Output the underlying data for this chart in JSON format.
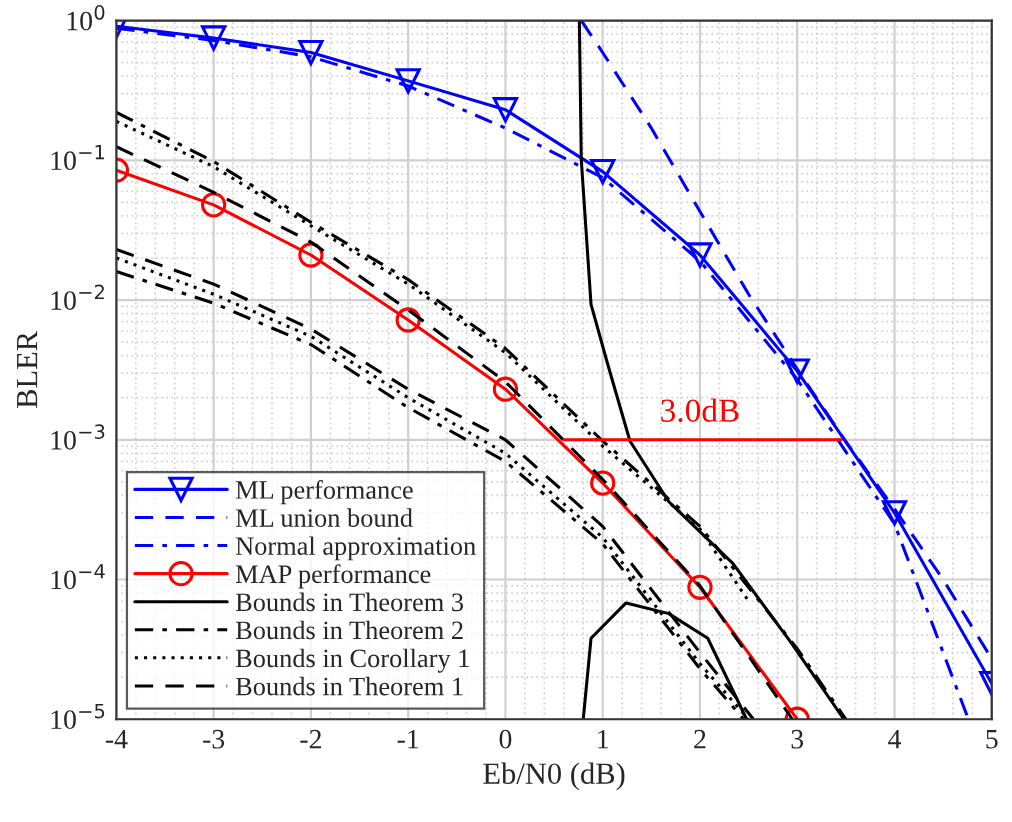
{
  "chart_data": {
    "type": "line",
    "xlabel": "Eb/N0 (dB)",
    "ylabel": "BLER",
    "xlim": [
      -4,
      5
    ],
    "xticks": [
      -4,
      -3,
      -2,
      -1,
      0,
      1,
      2,
      3,
      4,
      5
    ],
    "ylim": [
      1e-05,
      1
    ],
    "yticks": [
      {
        "value": 1e-05,
        "label": "10$^{−5}$"
      },
      {
        "value": 0.0001,
        "label": "10$^{−4}$"
      },
      {
        "value": 0.001,
        "label": "10$^{−3}$"
      },
      {
        "value": 0.01,
        "label": "10$^{−2}$"
      },
      {
        "value": 0.1,
        "label": "10$^{−1}$"
      },
      {
        "value": 1,
        "label": "10$^{0}$"
      }
    ],
    "log": "y",
    "grid": true,
    "legend": "bottom left",
    "series": [
      {
        "name": "ML performance",
        "color": "#0000ff",
        "line_style": "solid",
        "marker": "triangle",
        "x": [
          -4,
          -3,
          -2,
          -1,
          0,
          1,
          2,
          3,
          4,
          5
        ],
        "values": [
          0.91,
          0.75,
          0.59,
          0.37,
          0.23,
          0.083,
          0.021,
          0.0031,
          0.0003,
          1.8e-05
        ]
      },
      {
        "name": "ML union bound",
        "color": "#0000ff",
        "line_style": "dashed",
        "x": [
          0.78,
          1,
          1.5,
          2,
          2.5,
          3,
          3.5,
          4,
          4.5,
          5
        ],
        "values": [
          1,
          0.59,
          0.17,
          0.043,
          0.011,
          0.0032,
          0.00097,
          0.00032,
          0.0001,
          2.7e-05
        ]
      },
      {
        "name": "Normal approximation",
        "color": "#0000ff",
        "line_style": "dashdot",
        "x": [
          -4,
          -3,
          -2,
          -1,
          0,
          1,
          2,
          3,
          4,
          4.76
        ],
        "values": [
          0.88,
          0.72,
          0.55,
          0.34,
          0.17,
          0.075,
          0.019,
          0.0027,
          0.00025,
          1e-05
        ]
      },
      {
        "name": "MAP performance",
        "color": "#ff0000",
        "line_style": "solid",
        "marker": "circle",
        "x": [
          -4,
          -3,
          -2,
          -1,
          0,
          1,
          2,
          3
        ],
        "values": [
          0.085,
          0.048,
          0.021,
          0.0072,
          0.0023,
          0.00049,
          8.8e-05,
          1e-05
        ]
      },
      {
        "name": "Bounds in Theorem 3",
        "color": "#000000",
        "line_style": "solid",
        "x": [
          0.76,
          0.78,
          0.88,
          1.05,
          1.28,
          1.68,
          2.34,
          2.94,
          3.48
        ],
        "values": [
          1,
          0.1,
          0.0093,
          0.0035,
          0.00098,
          0.00036,
          0.00013,
          3.5e-05,
          1e-05
        ]
      },
      {
        "color": "#000000",
        "line_style": "solid",
        "x": [
          0.8,
          0.88,
          1.24,
          1.68,
          2.08,
          2.48
        ],
        "values": [
          1e-05,
          3.8e-05,
          6.8e-05,
          5.7e-05,
          3.8e-05,
          1e-05
        ]
      },
      {
        "name": "Bounds in Theorem 2",
        "color": "#000000",
        "line_style": "dashdot",
        "x": [
          -4,
          -3,
          -2,
          -1,
          0,
          1,
          2,
          3,
          3.5
        ],
        "values": [
          0.22,
          0.098,
          0.036,
          0.014,
          0.0045,
          0.00098,
          0.00024,
          3.2e-05,
          1e-05
        ]
      },
      {
        "color": "#000000",
        "line_style": "dashdot",
        "x": [
          -4,
          -3,
          -2,
          -1,
          0,
          1,
          2,
          2.45
        ],
        "values": [
          0.016,
          0.0095,
          0.0048,
          0.0017,
          0.0007,
          0.00018,
          2.3e-05,
          1e-05
        ]
      },
      {
        "name": "Bounds in Corollary 1",
        "color": "#000000",
        "line_style": "dotted",
        "x": [
          -4,
          -3,
          -2,
          -1,
          0,
          1,
          2,
          2.5
        ],
        "values": [
          0.19,
          0.09,
          0.034,
          0.013,
          0.0042,
          0.0009,
          0.00023,
          7e-05
        ]
      },
      {
        "color": "#000000",
        "line_style": "dotted",
        "x": [
          -4,
          -3,
          -2,
          -1,
          0,
          1,
          2,
          2.5
        ],
        "values": [
          0.02,
          0.011,
          0.0055,
          0.002,
          0.0008,
          0.0002,
          2.5e-05,
          1e-05
        ]
      },
      {
        "name": "Bounds in Theorem 1",
        "color": "#000000",
        "line_style": "dashed",
        "x": [
          -4,
          -3,
          -2,
          -1,
          0,
          1,
          2,
          2.95
        ],
        "values": [
          0.125,
          0.059,
          0.026,
          0.0085,
          0.0026,
          0.00052,
          9e-05,
          1e-05
        ]
      },
      {
        "color": "#000000",
        "line_style": "dashed",
        "x": [
          -4,
          -3,
          -2,
          -1,
          0,
          1,
          2,
          2.55
        ],
        "values": [
          0.023,
          0.013,
          0.0062,
          0.0023,
          0.001,
          0.00024,
          3e-05,
          1e-05
        ]
      },
      {
        "color": "#ff0000",
        "line_style": "solid",
        "x": [
          0.6,
          3.45
        ],
        "values": [
          0.001,
          0.001
        ]
      }
    ],
    "annotations": [
      {
        "text": "3.0dB",
        "x": 2.0,
        "y": 0.001
      }
    ]
  }
}
